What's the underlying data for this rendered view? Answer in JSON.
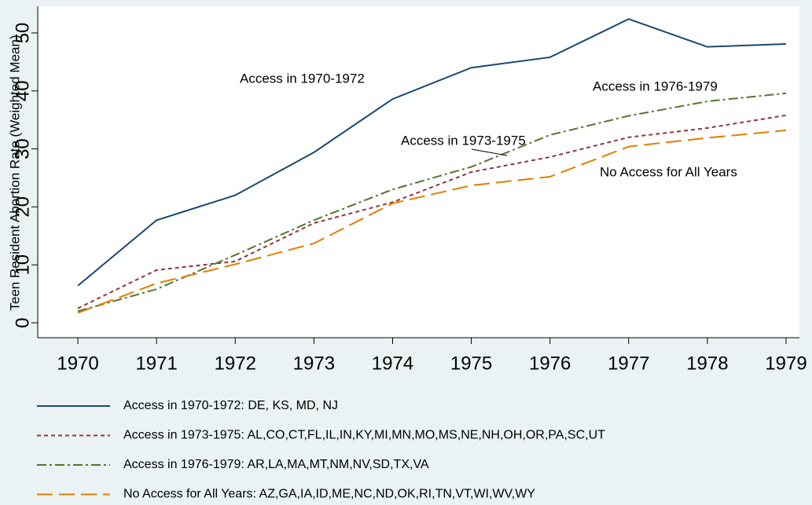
{
  "chart_data": {
    "type": "line",
    "y_label": "Teen Resident Abortion Rate (Weighted Mean)",
    "x": [
      1970,
      1971,
      1972,
      1973,
      1974,
      1975,
      1976,
      1977,
      1978,
      1979
    ],
    "xlim": [
      1969.49,
      1979.17
    ],
    "xticks": [
      1970,
      1971,
      1972,
      1973,
      1974,
      1975,
      1976,
      1977,
      1978,
      1979
    ],
    "ylim": [
      -2.3,
      54.6
    ],
    "yticks": [
      0,
      10,
      20,
      30,
      40,
      50
    ],
    "grid": false,
    "legend": "bottom",
    "series": [
      {
        "name": "Access in 1970-1972: DE, KS, MD, NJ",
        "color": "#1a476f",
        "dash": "solid",
        "values": [
          6.4,
          17.7,
          22.0,
          29.4,
          38.6,
          44.0,
          45.8,
          52.4,
          47.6,
          48.1
        ]
      },
      {
        "name": "Access in 1973-1975: AL,CO,CT,FL,IL,IN,KY,MI,MN,MO,MS,NE,NH,OH,OR,PA,SC,UT",
        "color": "#90353b",
        "dash": "short",
        "values": [
          2.5,
          9.1,
          10.6,
          17.2,
          20.8,
          26.0,
          28.6,
          32.0,
          33.6,
          35.8
        ]
      },
      {
        "name": "Access in 1976-1979: AR,LA,MA,MT,NM,NV,SD,TX,VA",
        "color": "#55752f",
        "dash": "dashdot",
        "values": [
          2.0,
          5.8,
          11.7,
          17.7,
          23.0,
          26.9,
          32.4,
          35.7,
          38.2,
          39.6
        ]
      },
      {
        "name": "No Access for All Years: AZ,GA,IA,ID,ME,NC,ND,OK,RI,TN,VT,WI,WV,WY",
        "color": "#e37e00",
        "dash": "long",
        "values": [
          1.7,
          6.8,
          10.1,
          13.7,
          20.6,
          23.7,
          25.2,
          30.4,
          31.9,
          33.2
        ]
      }
    ],
    "annotations": [
      "Access in 1970-1972",
      "Access in 1973-1975",
      "Access in 1976-1979",
      "No Access for All Years"
    ]
  }
}
